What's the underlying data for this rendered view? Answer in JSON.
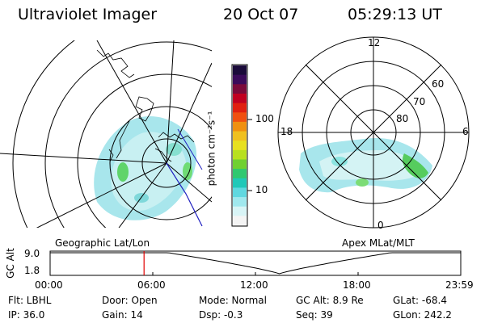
{
  "header": {
    "instrument": "Ultraviolet Imager",
    "date": "20 Oct 07",
    "time": "05:29:13 UT"
  },
  "colorbar": {
    "unit_label": "photon cm⁻²s⁻¹",
    "ticks": [
      {
        "label": "100",
        "value": 100
      },
      {
        "label": "10",
        "value": 10
      }
    ],
    "scale": "log"
  },
  "geo_panel": {
    "caption": "Geographic Lat/Lon"
  },
  "apex_panel": {
    "caption": "Apex MLat/MLT",
    "mlt_labels": {
      "top": "12",
      "left": "18",
      "right": "6",
      "bottom": "0"
    },
    "lat_labels": [
      "60",
      "70",
      "80"
    ]
  },
  "altitude_plot": {
    "ylabel": "GC Alt",
    "yticks": [
      "9.0",
      "1.8"
    ],
    "xticks": [
      "00:00",
      "06:00",
      "12:00",
      "18:00",
      "23:59"
    ],
    "current_time_hours": 5.49,
    "x_range_hours": [
      0,
      24
    ],
    "y_range_re": [
      1.8,
      9.0
    ],
    "orbit_min_time_hours": 13.4,
    "marker_color": "#e00000"
  },
  "footer": {
    "filter": "Flt: LBHL",
    "door": "Door: Open",
    "mode": "Mode: Normal",
    "gc_alt": "GC Alt: 8.9 Re",
    "glat": "GLat: -68.4",
    "ip": "IP: 36.0",
    "gain": "Gain: 14",
    "dsp": "Dsp:    -0.3",
    "seq": "Seq: 39",
    "glon": "GLon: 242.2"
  }
}
